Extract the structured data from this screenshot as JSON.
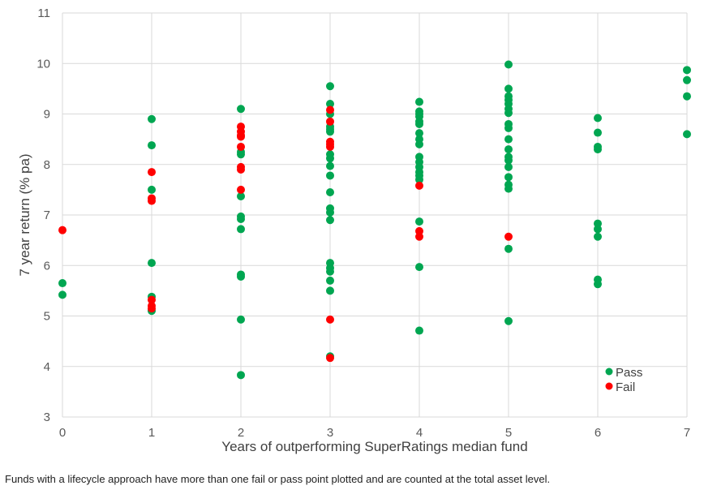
{
  "chart_data": {
    "type": "scatter",
    "title": "",
    "xlabel": "Years of outperforming SuperRatings median fund",
    "ylabel": "7 year return (% pa)",
    "xlim": [
      0,
      7
    ],
    "ylim": [
      3,
      11
    ],
    "xticks": [
      "0",
      "1",
      "2",
      "3",
      "4",
      "5",
      "6",
      "7"
    ],
    "yticks": [
      "3",
      "4",
      "5",
      "6",
      "7",
      "8",
      "9",
      "10",
      "11"
    ],
    "grid": true,
    "legend_position": "bottom-right",
    "series": [
      {
        "name": "Pass",
        "color": "#00a651",
        "points": [
          [
            0,
            5.65
          ],
          [
            0,
            5.42
          ],
          [
            1,
            8.9
          ],
          [
            1,
            8.38
          ],
          [
            1,
            7.5
          ],
          [
            1,
            6.05
          ],
          [
            1,
            5.38
          ],
          [
            1,
            5.1
          ],
          [
            2,
            9.1
          ],
          [
            2,
            8.25
          ],
          [
            2,
            8.2
          ],
          [
            2,
            7.37
          ],
          [
            2,
            6.97
          ],
          [
            2,
            6.92
          ],
          [
            2,
            6.72
          ],
          [
            2,
            5.82
          ],
          [
            2,
            5.78
          ],
          [
            2,
            4.93
          ],
          [
            2,
            3.83
          ],
          [
            3,
            9.55
          ],
          [
            3,
            9.2
          ],
          [
            3,
            9.0
          ],
          [
            3,
            8.75
          ],
          [
            3,
            8.7
          ],
          [
            3,
            8.65
          ],
          [
            3,
            8.2
          ],
          [
            3,
            8.12
          ],
          [
            3,
            7.97
          ],
          [
            3,
            7.78
          ],
          [
            3,
            7.45
          ],
          [
            3,
            7.13
          ],
          [
            3,
            7.05
          ],
          [
            3,
            6.9
          ],
          [
            3,
            6.05
          ],
          [
            3,
            5.95
          ],
          [
            3,
            5.88
          ],
          [
            3,
            5.7
          ],
          [
            3,
            5.5
          ],
          [
            3,
            4.2
          ],
          [
            4,
            9.24
          ],
          [
            4,
            9.05
          ],
          [
            4,
            9.0
          ],
          [
            4,
            8.95
          ],
          [
            4,
            8.85
          ],
          [
            4,
            8.8
          ],
          [
            4,
            8.62
          ],
          [
            4,
            8.5
          ],
          [
            4,
            8.4
          ],
          [
            4,
            8.15
          ],
          [
            4,
            8.05
          ],
          [
            4,
            7.95
          ],
          [
            4,
            7.85
          ],
          [
            4,
            7.78
          ],
          [
            4,
            7.7
          ],
          [
            4,
            6.87
          ],
          [
            4,
            5.97
          ],
          [
            4,
            4.71
          ],
          [
            5,
            9.98
          ],
          [
            5,
            9.5
          ],
          [
            5,
            9.35
          ],
          [
            5,
            9.28
          ],
          [
            5,
            9.2
          ],
          [
            5,
            9.1
          ],
          [
            5,
            9.02
          ],
          [
            5,
            8.8
          ],
          [
            5,
            8.72
          ],
          [
            5,
            8.5
          ],
          [
            5,
            8.3
          ],
          [
            5,
            8.15
          ],
          [
            5,
            8.08
          ],
          [
            5,
            7.95
          ],
          [
            5,
            7.75
          ],
          [
            5,
            7.6
          ],
          [
            5,
            7.52
          ],
          [
            5,
            6.33
          ],
          [
            5,
            4.9
          ],
          [
            6,
            8.92
          ],
          [
            6,
            8.63
          ],
          [
            6,
            8.35
          ],
          [
            6,
            8.3
          ],
          [
            6,
            6.83
          ],
          [
            6,
            6.72
          ],
          [
            6,
            6.57
          ],
          [
            6,
            5.72
          ],
          [
            6,
            5.63
          ],
          [
            7,
            9.87
          ],
          [
            7,
            9.67
          ],
          [
            7,
            9.35
          ],
          [
            7,
            8.6
          ]
        ]
      },
      {
        "name": "Fail",
        "color": "#ff0000",
        "points": [
          [
            0,
            6.7
          ],
          [
            1,
            7.85
          ],
          [
            1,
            7.33
          ],
          [
            1,
            7.28
          ],
          [
            1,
            5.32
          ],
          [
            1,
            5.2
          ],
          [
            1,
            5.15
          ],
          [
            2,
            8.75
          ],
          [
            2,
            8.65
          ],
          [
            2,
            8.58
          ],
          [
            2,
            8.55
          ],
          [
            2,
            8.35
          ],
          [
            2,
            7.95
          ],
          [
            2,
            7.9
          ],
          [
            2,
            7.5
          ],
          [
            3,
            9.08
          ],
          [
            3,
            8.85
          ],
          [
            3,
            8.45
          ],
          [
            3,
            8.4
          ],
          [
            3,
            8.35
          ],
          [
            3,
            4.93
          ],
          [
            3,
            4.17
          ],
          [
            4,
            7.58
          ],
          [
            4,
            6.68
          ],
          [
            4,
            6.57
          ],
          [
            5,
            6.57
          ]
        ]
      }
    ]
  },
  "footnote": "Funds with a lifecycle approach have more than one fail or pass point plotted and are counted at the total asset level."
}
